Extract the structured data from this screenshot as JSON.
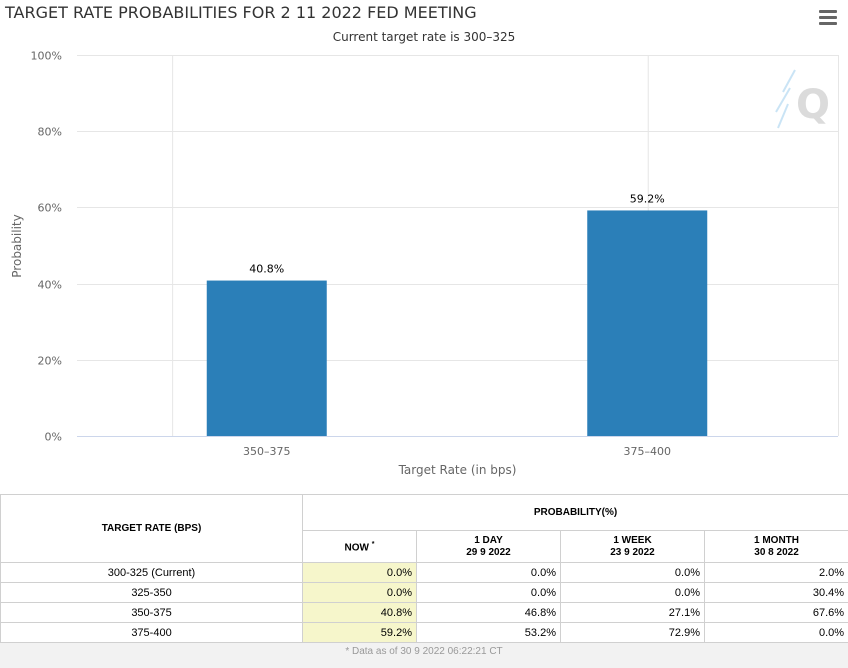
{
  "header": {
    "title": "TARGET RATE PROBABILITIES FOR 2 11 2022 FED MEETING",
    "subtitle": "Current target rate is 300–325",
    "menu_icon": "hamburger-menu-icon",
    "watermark_icon": "q-logo-icon"
  },
  "chart_data": {
    "type": "bar",
    "title": "TARGET RATE PROBABILITIES FOR 2 11 2022 FED MEETING",
    "subtitle": "Current target rate is 300–325",
    "categories": [
      "350–375",
      "375–400"
    ],
    "values": [
      40.8,
      59.2
    ],
    "data_labels": [
      "40.8%",
      "59.2%"
    ],
    "xlabel": "Target Rate (in bps)",
    "ylabel": "Probability",
    "ylim": [
      0,
      100
    ],
    "yticks": [
      0,
      20,
      40,
      60,
      80,
      100
    ],
    "ytick_labels": [
      "0%",
      "20%",
      "40%",
      "60%",
      "80%",
      "100%"
    ],
    "grid": true,
    "bar_color": "#2b7fb8"
  },
  "table": {
    "col_rate_header": "TARGET RATE (BPS)",
    "prob_header": "PROBABILITY(%)",
    "now_header": "NOW",
    "now_marker": "*",
    "day_header": "1 DAY",
    "day_date": "29 9 2022",
    "week_header": "1 WEEK",
    "week_date": "23 9 2022",
    "month_header": "1 MONTH",
    "month_date": "30 8 2022",
    "rows": [
      {
        "rate": "300-325 (Current)",
        "now": "0.0%",
        "day": "0.0%",
        "week": "0.0%",
        "month": "2.0%"
      },
      {
        "rate": "325-350",
        "now": "0.0%",
        "day": "0.0%",
        "week": "0.0%",
        "month": "30.4%"
      },
      {
        "rate": "350-375",
        "now": "40.8%",
        "day": "46.8%",
        "week": "27.1%",
        "month": "67.6%"
      },
      {
        "rate": "375-400",
        "now": "59.2%",
        "day": "53.2%",
        "week": "72.9%",
        "month": "0.0%"
      }
    ],
    "footnote": "* Data as of 30 9 2022 06:22:21 CT"
  }
}
